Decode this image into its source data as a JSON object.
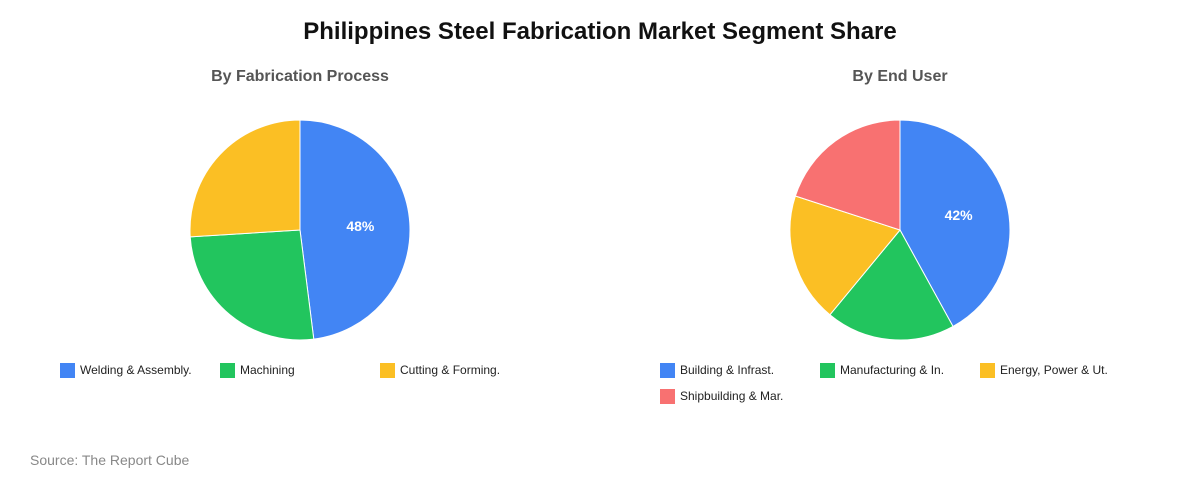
{
  "title": "Philippines Steel Fabrication Market Segment Share",
  "source": "Source: The Report Cube",
  "chart_data": [
    {
      "type": "pie",
      "title": "By Fabrication Process",
      "categories": [
        "Welding & Assembly.",
        "Machining",
        "Cutting & Forming."
      ],
      "values": [
        48,
        26,
        26
      ],
      "colors": [
        "#4285F4",
        "#22C55E",
        "#FBBF24"
      ],
      "data_labels": [
        "48%",
        "",
        ""
      ],
      "legend": "bottom"
    },
    {
      "type": "pie",
      "title": "By End User",
      "categories": [
        "Building & Infrast.",
        "Manufacturing & In.",
        "Energy, Power & Ut.",
        "Shipbuilding & Mar."
      ],
      "values": [
        42,
        19,
        19,
        20
      ],
      "colors": [
        "#4285F4",
        "#22C55E",
        "#FBBF24",
        "#F87171"
      ],
      "data_labels": [
        "42%",
        "",
        "",
        ""
      ],
      "legend": "bottom"
    }
  ]
}
